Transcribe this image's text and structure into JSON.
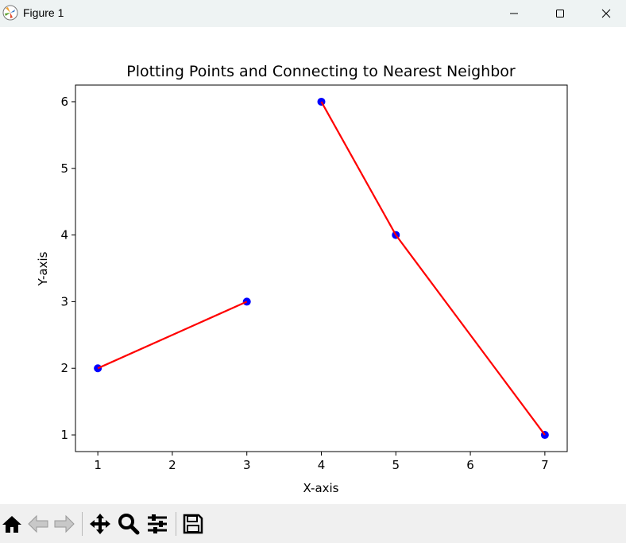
{
  "window": {
    "title": "Figure 1",
    "controls": [
      "minimize",
      "maximize",
      "close"
    ]
  },
  "toolbar": {
    "buttons": [
      "home-icon",
      "back-arrow-icon",
      "forward-arrow-icon",
      "pan-icon",
      "zoom-icon",
      "configure-subplots-icon",
      "save-icon"
    ]
  },
  "chart_data": {
    "type": "line",
    "title": "Plotting Points and Connecting to Nearest Neighbor",
    "xlabel": "X-axis",
    "ylabel": "Y-axis",
    "xlim": [
      0.7,
      7.3
    ],
    "ylim": [
      0.75,
      6.25
    ],
    "xticks": [
      1,
      2,
      3,
      4,
      5,
      6,
      7
    ],
    "yticks": [
      1,
      2,
      3,
      4,
      5,
      6
    ],
    "grid": false,
    "points": [
      {
        "x": 1,
        "y": 2
      },
      {
        "x": 3,
        "y": 3
      },
      {
        "x": 4,
        "y": 6
      },
      {
        "x": 5,
        "y": 4
      },
      {
        "x": 7,
        "y": 1
      }
    ],
    "segments": [
      {
        "from": [
          1,
          2
        ],
        "to": [
          3,
          3
        ]
      },
      {
        "from": [
          4,
          6
        ],
        "to": [
          5,
          4
        ]
      },
      {
        "from": [
          5,
          4
        ],
        "to": [
          7,
          1
        ]
      }
    ],
    "colors": {
      "points": "#0000ff",
      "lines": "#ff0000"
    }
  }
}
